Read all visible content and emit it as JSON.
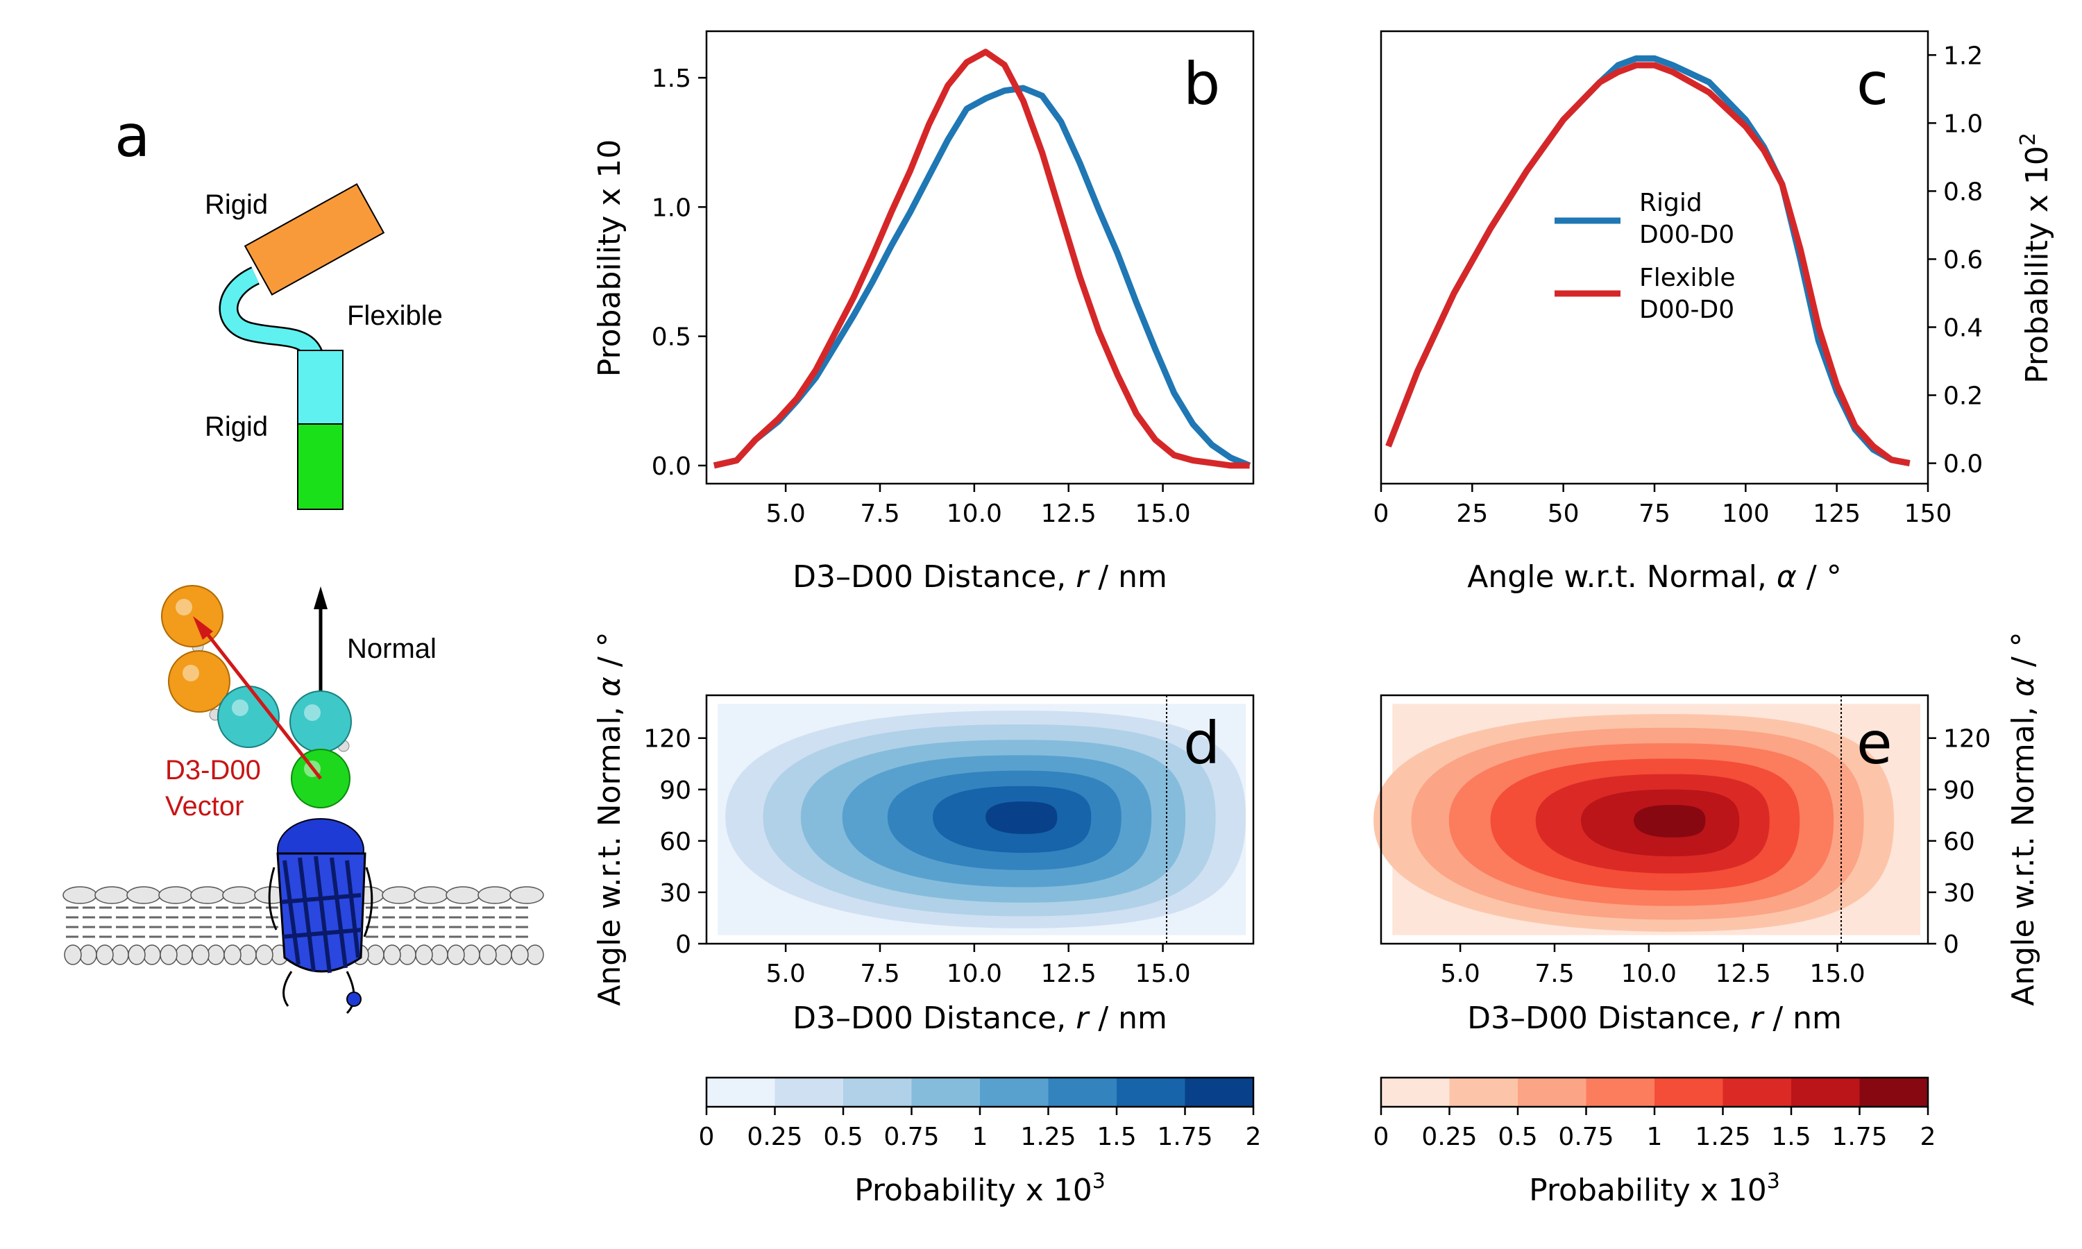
{
  "panels": {
    "a": "a",
    "b": "b",
    "c": "c",
    "d": "d",
    "e": "e"
  },
  "schematic": {
    "rigid_top": "Rigid",
    "flexible": "Flexible",
    "rigid_bottom": "Rigid",
    "normal": "Normal",
    "vector_line1": "D3-D00",
    "vector_line2": "Vector",
    "colors": {
      "orange": "#f99a3a",
      "cyan": "#5ff0f0",
      "green": "#19e019",
      "red_arrow": "#d01818",
      "protein": "#1f3bd6"
    }
  },
  "chart_data": [
    {
      "id": "b",
      "type": "line",
      "xlabel": "D3–D00 Distance, r / nm",
      "ylabel": "Probability x 10",
      "xlim": [
        2.9,
        17.4
      ],
      "ylim": [
        -0.07,
        1.68
      ],
      "xticks": [
        "5.0",
        "7.5",
        "10.0",
        "12.5",
        "15.0"
      ],
      "yticks": [
        "0.0",
        "0.5",
        "1.0",
        "1.5"
      ],
      "series": [
        {
          "color": "#1f77b4",
          "x": [
            3.1,
            3.7,
            4.2,
            4.8,
            5.3,
            5.8,
            6.3,
            6.8,
            7.3,
            7.8,
            8.3,
            8.8,
            9.3,
            9.8,
            10.3,
            10.8,
            11.3,
            11.8,
            12.3,
            12.8,
            13.3,
            13.8,
            14.3,
            14.8,
            15.3,
            15.8,
            16.3,
            16.8,
            17.3
          ],
          "values": [
            0.0,
            0.02,
            0.1,
            0.17,
            0.25,
            0.34,
            0.46,
            0.58,
            0.71,
            0.85,
            0.98,
            1.12,
            1.26,
            1.38,
            1.42,
            1.45,
            1.46,
            1.43,
            1.33,
            1.17,
            0.99,
            0.82,
            0.63,
            0.45,
            0.28,
            0.16,
            0.08,
            0.03,
            0.0
          ]
        },
        {
          "color": "#d62728",
          "x": [
            3.1,
            3.7,
            4.2,
            4.8,
            5.3,
            5.8,
            6.3,
            6.8,
            7.3,
            7.8,
            8.3,
            8.8,
            9.3,
            9.8,
            10.3,
            10.8,
            11.3,
            11.8,
            12.3,
            12.8,
            13.3,
            13.8,
            14.3,
            14.8,
            15.3,
            15.8,
            16.3,
            16.8,
            17.3
          ],
          "values": [
            0.0,
            0.02,
            0.1,
            0.18,
            0.26,
            0.37,
            0.51,
            0.65,
            0.81,
            0.98,
            1.14,
            1.32,
            1.47,
            1.56,
            1.6,
            1.55,
            1.41,
            1.21,
            0.97,
            0.73,
            0.52,
            0.35,
            0.2,
            0.1,
            0.04,
            0.02,
            0.01,
            0.0,
            0.0
          ]
        }
      ]
    },
    {
      "id": "c",
      "type": "line",
      "xlabel": "Angle w.r.t. Normal, α / °",
      "ylabel": "Probability x 10",
      "ylabel_sup": "2",
      "xlim": [
        0,
        150
      ],
      "ylim": [
        -0.06,
        1.27
      ],
      "xticks": [
        "0",
        "25",
        "50",
        "75",
        "100",
        "125",
        "150"
      ],
      "yticks": [
        "0.0",
        "0.2",
        "0.4",
        "0.6",
        "0.8",
        "1.0",
        "1.2"
      ],
      "legend": {
        "position": "center",
        "entries": [
          {
            "line1": "Rigid",
            "line2": "D00-D0",
            "color": "#1f77b4"
          },
          {
            "line1": "Flexible",
            "line2": "D00-D0",
            "color": "#d62728"
          }
        ]
      },
      "series": [
        {
          "color": "#1f77b4",
          "x": [
            2,
            10,
            20,
            30,
            40,
            50,
            60,
            65,
            70,
            75,
            80,
            90,
            100,
            105,
            110,
            115,
            120,
            125,
            130,
            135,
            140,
            145
          ],
          "values": [
            0.05,
            0.27,
            0.5,
            0.69,
            0.86,
            1.01,
            1.12,
            1.17,
            1.19,
            1.19,
            1.17,
            1.12,
            1.01,
            0.93,
            0.82,
            0.6,
            0.36,
            0.21,
            0.1,
            0.04,
            0.01,
            0.0
          ]
        },
        {
          "color": "#d62728",
          "x": [
            2,
            10,
            20,
            30,
            40,
            50,
            60,
            65,
            70,
            75,
            80,
            90,
            100,
            105,
            110,
            115,
            120,
            125,
            130,
            135,
            140,
            145
          ],
          "values": [
            0.05,
            0.27,
            0.5,
            0.69,
            0.86,
            1.01,
            1.12,
            1.15,
            1.17,
            1.17,
            1.15,
            1.09,
            0.99,
            0.92,
            0.82,
            0.63,
            0.4,
            0.23,
            0.11,
            0.05,
            0.01,
            0.0
          ]
        }
      ]
    },
    {
      "id": "d",
      "type": "heatmap",
      "xlabel": "D3–D00 Distance, r / nm",
      "ylabel": "Angle w.r.t. Normal, α / °",
      "xlim": [
        2.9,
        17.4
      ],
      "ylim": [
        0,
        145
      ],
      "xticks": [
        "5.0",
        "7.5",
        "10.0",
        "12.5",
        "15.0"
      ],
      "yticks": [
        "0",
        "30",
        "60",
        "90",
        "120"
      ],
      "cutoff_line_x": 15.1,
      "peak": {
        "r": 11.3,
        "alpha": 74
      },
      "colorbar": {
        "label": "Probability x 10",
        "label_sup": "3",
        "ticks": [
          "0",
          "0.25",
          "0.5",
          "0.75",
          "1",
          "1.25",
          "1.5",
          "1.75",
          "2"
        ],
        "colors": [
          "#eaf2fb",
          "#cfe0f2",
          "#b0d1e7",
          "#85bcdc",
          "#58a1cf",
          "#3383bf",
          "#1764ab",
          "#084189"
        ]
      }
    },
    {
      "id": "e",
      "type": "heatmap",
      "xlabel": "D3–D00 Distance, r / nm",
      "ylabel": "Angle w.r.t. Normal, α / °",
      "xlim": [
        2.9,
        17.4
      ],
      "ylim": [
        0,
        145
      ],
      "xticks": [
        "5.0",
        "7.5",
        "10.0",
        "12.5",
        "15.0"
      ],
      "yticks": [
        "0",
        "30",
        "60",
        "90",
        "120"
      ],
      "cutoff_line_x": 15.1,
      "peak": {
        "r": 10.6,
        "alpha": 72
      },
      "colorbar": {
        "label": "Probability x 10",
        "label_sup": "3",
        "ticks": [
          "0",
          "0.25",
          "0.5",
          "0.75",
          "1",
          "1.25",
          "1.5",
          "1.75",
          "2"
        ],
        "colors": [
          "#fee5d9",
          "#fcc5aa",
          "#fca486",
          "#fb7d5d",
          "#f44d38",
          "#db2a25",
          "#bb1519",
          "#880811"
        ]
      }
    }
  ]
}
